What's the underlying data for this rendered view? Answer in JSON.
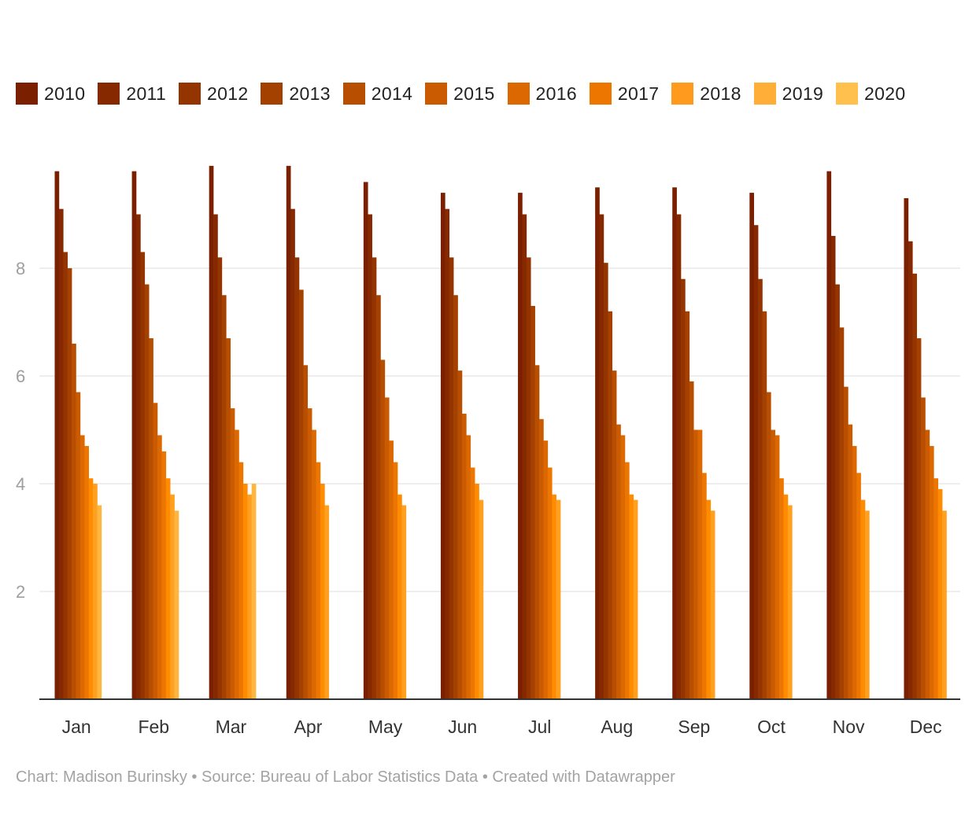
{
  "chart_data": {
    "type": "bar",
    "title": "",
    "xlabel": "",
    "ylabel": "",
    "ylim": [
      0,
      10
    ],
    "yticks": [
      2,
      4,
      6,
      8
    ],
    "grid": true,
    "legend_position": "top",
    "categories": [
      "Jan",
      "Feb",
      "Mar",
      "Apr",
      "May",
      "Jun",
      "Jul",
      "Aug",
      "Sep",
      "Oct",
      "Nov",
      "Dec"
    ],
    "series": [
      {
        "name": "2010",
        "color": "#7a1f00",
        "values": [
          9.8,
          9.8,
          9.9,
          9.9,
          9.6,
          9.4,
          9.4,
          9.5,
          9.5,
          9.4,
          9.8,
          9.3
        ]
      },
      {
        "name": "2011",
        "color": "#862900",
        "values": [
          9.1,
          9.0,
          9.0,
          9.1,
          9.0,
          9.1,
          9.0,
          9.0,
          9.0,
          8.8,
          8.6,
          8.5
        ]
      },
      {
        "name": "2012",
        "color": "#943400",
        "values": [
          8.3,
          8.3,
          8.2,
          8.2,
          8.2,
          8.2,
          8.2,
          8.1,
          7.8,
          7.8,
          7.7,
          7.9
        ]
      },
      {
        "name": "2013",
        "color": "#a54100",
        "values": [
          8.0,
          7.7,
          7.5,
          7.6,
          7.5,
          7.5,
          7.3,
          7.2,
          7.2,
          7.2,
          6.9,
          6.7
        ]
      },
      {
        "name": "2014",
        "color": "#b84e00",
        "values": [
          6.6,
          6.7,
          6.7,
          6.2,
          6.3,
          6.1,
          6.2,
          6.1,
          5.9,
          5.7,
          5.8,
          5.6
        ]
      },
      {
        "name": "2015",
        "color": "#ca5b00",
        "values": [
          5.7,
          5.5,
          5.4,
          5.4,
          5.6,
          5.3,
          5.2,
          5.1,
          5.0,
          5.0,
          5.1,
          5.0
        ]
      },
      {
        "name": "2016",
        "color": "#db6800",
        "values": [
          4.9,
          4.9,
          5.0,
          5.0,
          4.8,
          4.9,
          4.8,
          4.9,
          5.0,
          4.9,
          4.7,
          4.7
        ]
      },
      {
        "name": "2017",
        "color": "#ec7600",
        "values": [
          4.7,
          4.6,
          4.4,
          4.4,
          4.4,
          4.3,
          4.3,
          4.4,
          4.2,
          4.1,
          4.2,
          4.1
        ]
      },
      {
        "name": "2018",
        "color": "#ff8c00",
        "values": [
          4.1,
          4.1,
          4.0,
          4.0,
          3.8,
          4.0,
          3.8,
          3.8,
          3.7,
          3.8,
          3.7,
          3.9
        ]
      },
      {
        "name": "2019",
        "color": "#ffa020",
        "values": [
          4.0,
          3.8,
          3.8,
          3.6,
          3.6,
          3.7,
          3.7,
          3.7,
          3.5,
          3.6,
          3.5,
          3.5
        ]
      },
      {
        "name": "2020",
        "color": "#ffb640",
        "values": [
          3.6,
          3.5,
          4.0,
          null,
          null,
          null,
          null,
          null,
          null,
          null,
          null,
          null
        ]
      }
    ],
    "legend_swatch_colors": [
      "#7a1f00",
      "#862900",
      "#943400",
      "#a54100",
      "#b84e00",
      "#ca5b00",
      "#db6800",
      "#ec7600",
      "#ff9a1e",
      "#ffae38",
      "#ffc04e"
    ],
    "colors": {
      "grid": "#e4e4e4",
      "axis": "#333333",
      "tick_label": "#9e9e9e",
      "category_label": "#333333"
    }
  },
  "footer": {
    "text": "Chart: Madison Burinsky • Source: Bureau of Labor Statistics Data • Created with Datawrapper"
  }
}
